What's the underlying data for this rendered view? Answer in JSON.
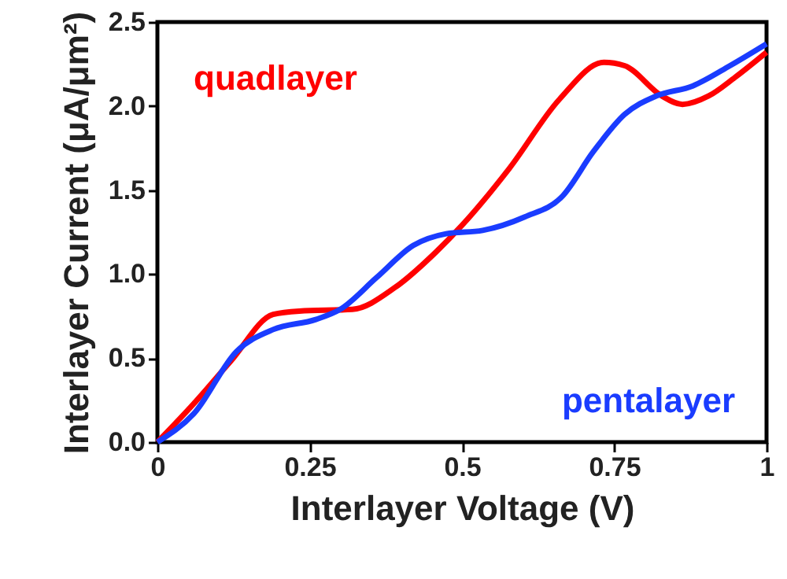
{
  "chart_data": {
    "type": "line",
    "xlabel": "Interlayer Voltage (V)",
    "ylabel": "Interlayer Current (μA/μm²)",
    "xlim": [
      0,
      1
    ],
    "ylim": [
      0,
      2.5
    ],
    "xticks": [
      0,
      0.25,
      0.5,
      0.75,
      1
    ],
    "yticks": [
      {
        "value": 0,
        "label": "0.0"
      },
      {
        "value": 0.5,
        "label": "0.5"
      },
      {
        "value": 1,
        "label": "1.0"
      },
      {
        "value": 1.5,
        "label": "1.5"
      },
      {
        "value": 2,
        "label": "2.0"
      },
      {
        "value": 2.5,
        "label": "2.5"
      }
    ],
    "grid": false,
    "marker": "none",
    "line_style": "solid",
    "series": [
      {
        "name": "quadlayer",
        "color": "#ff0000",
        "x": [
          0,
          0.06,
          0.12,
          0.19,
          0.233,
          0.32,
          0.39,
          0.457,
          0.5,
          0.578,
          0.66,
          0.733,
          0.767,
          0.828,
          0.862,
          0.905,
          0.948,
          1
        ],
        "values": [
          0,
          0.23,
          0.48,
          0.76,
          0.78,
          0.79,
          0.92,
          1.13,
          1.29,
          1.63,
          2.04,
          2.26,
          2.24,
          2.06,
          2.01,
          2.06,
          2.17,
          2.32
        ]
      },
      {
        "name": "pentalayer",
        "color": "#1a3cff",
        "x": [
          0,
          0.06,
          0.13,
          0.19,
          0.26,
          0.3,
          0.36,
          0.42,
          0.474,
          0.534,
          0.603,
          0.664,
          0.716,
          0.767,
          0.819,
          0.879,
          0.94,
          1
        ],
        "values": [
          0,
          0.17,
          0.54,
          0.67,
          0.73,
          0.79,
          0.98,
          1.17,
          1.24,
          1.26,
          1.34,
          1.46,
          1.73,
          1.95,
          2.06,
          2.12,
          2.24,
          2.37
        ]
      }
    ]
  }
}
